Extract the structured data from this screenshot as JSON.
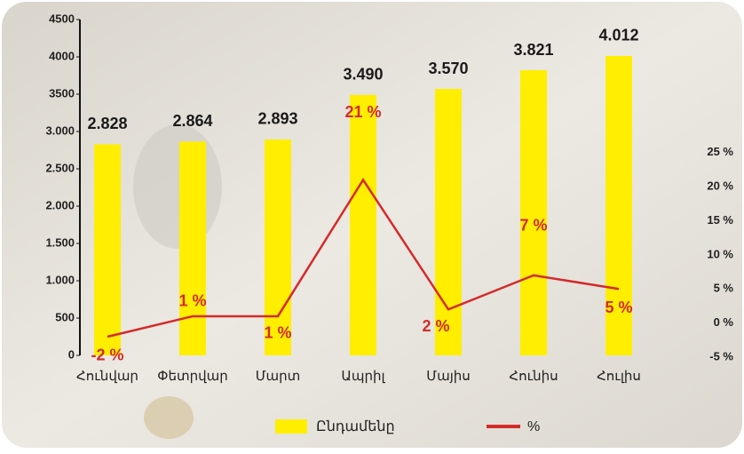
{
  "chart_data": {
    "type": "bar_line",
    "categories": [
      "Հունվար",
      "Փետրվար",
      "Մարտ",
      "Ապրիլ",
      "Մայիս",
      "Հունիս",
      "Հուլիս"
    ],
    "series": [
      {
        "name": "Ընդամենը",
        "type": "bar",
        "color": "#ffee00",
        "values": [
          2828,
          2864,
          2893,
          3490,
          3570,
          3821,
          4012
        ],
        "value_labels": [
          "2.828",
          "2.864",
          "2.893",
          "3.490",
          "3.570",
          "3.821",
          "4.012"
        ]
      },
      {
        "name": "%",
        "type": "line",
        "axis": "y2",
        "color": "#d42a2a",
        "values": [
          -2,
          1,
          1,
          21,
          2,
          7,
          5
        ],
        "value_labels": [
          "-2 %",
          "1 %",
          "1 %",
          "21 %",
          "2 %",
          "7 %",
          "5 %"
        ]
      }
    ],
    "ylim": [
      0,
      4500
    ],
    "yticks": [
      0,
      500,
      {
        "value": 1000,
        "label": "1.000"
      },
      {
        "value": 1500,
        "label": "1.500"
      },
      {
        "value": 2000,
        "label": "2.000"
      },
      {
        "value": 2500,
        "label": "2.500"
      },
      {
        "value": 3000,
        "label": "3.000"
      },
      3500,
      4000,
      4500
    ],
    "y2lim": [
      -5,
      44.5
    ],
    "y2ticks": [
      {
        "value": -5,
        "label": "-5 %"
      },
      {
        "value": 0,
        "label": "0 %"
      },
      {
        "value": 5,
        "label": "5 %"
      },
      {
        "value": 10,
        "label": "10 %"
      },
      {
        "value": 15,
        "label": "15 %"
      },
      {
        "value": 20,
        "label": "20 %"
      },
      {
        "value": 25,
        "label": "25 %"
      }
    ],
    "legend": "bottom"
  }
}
